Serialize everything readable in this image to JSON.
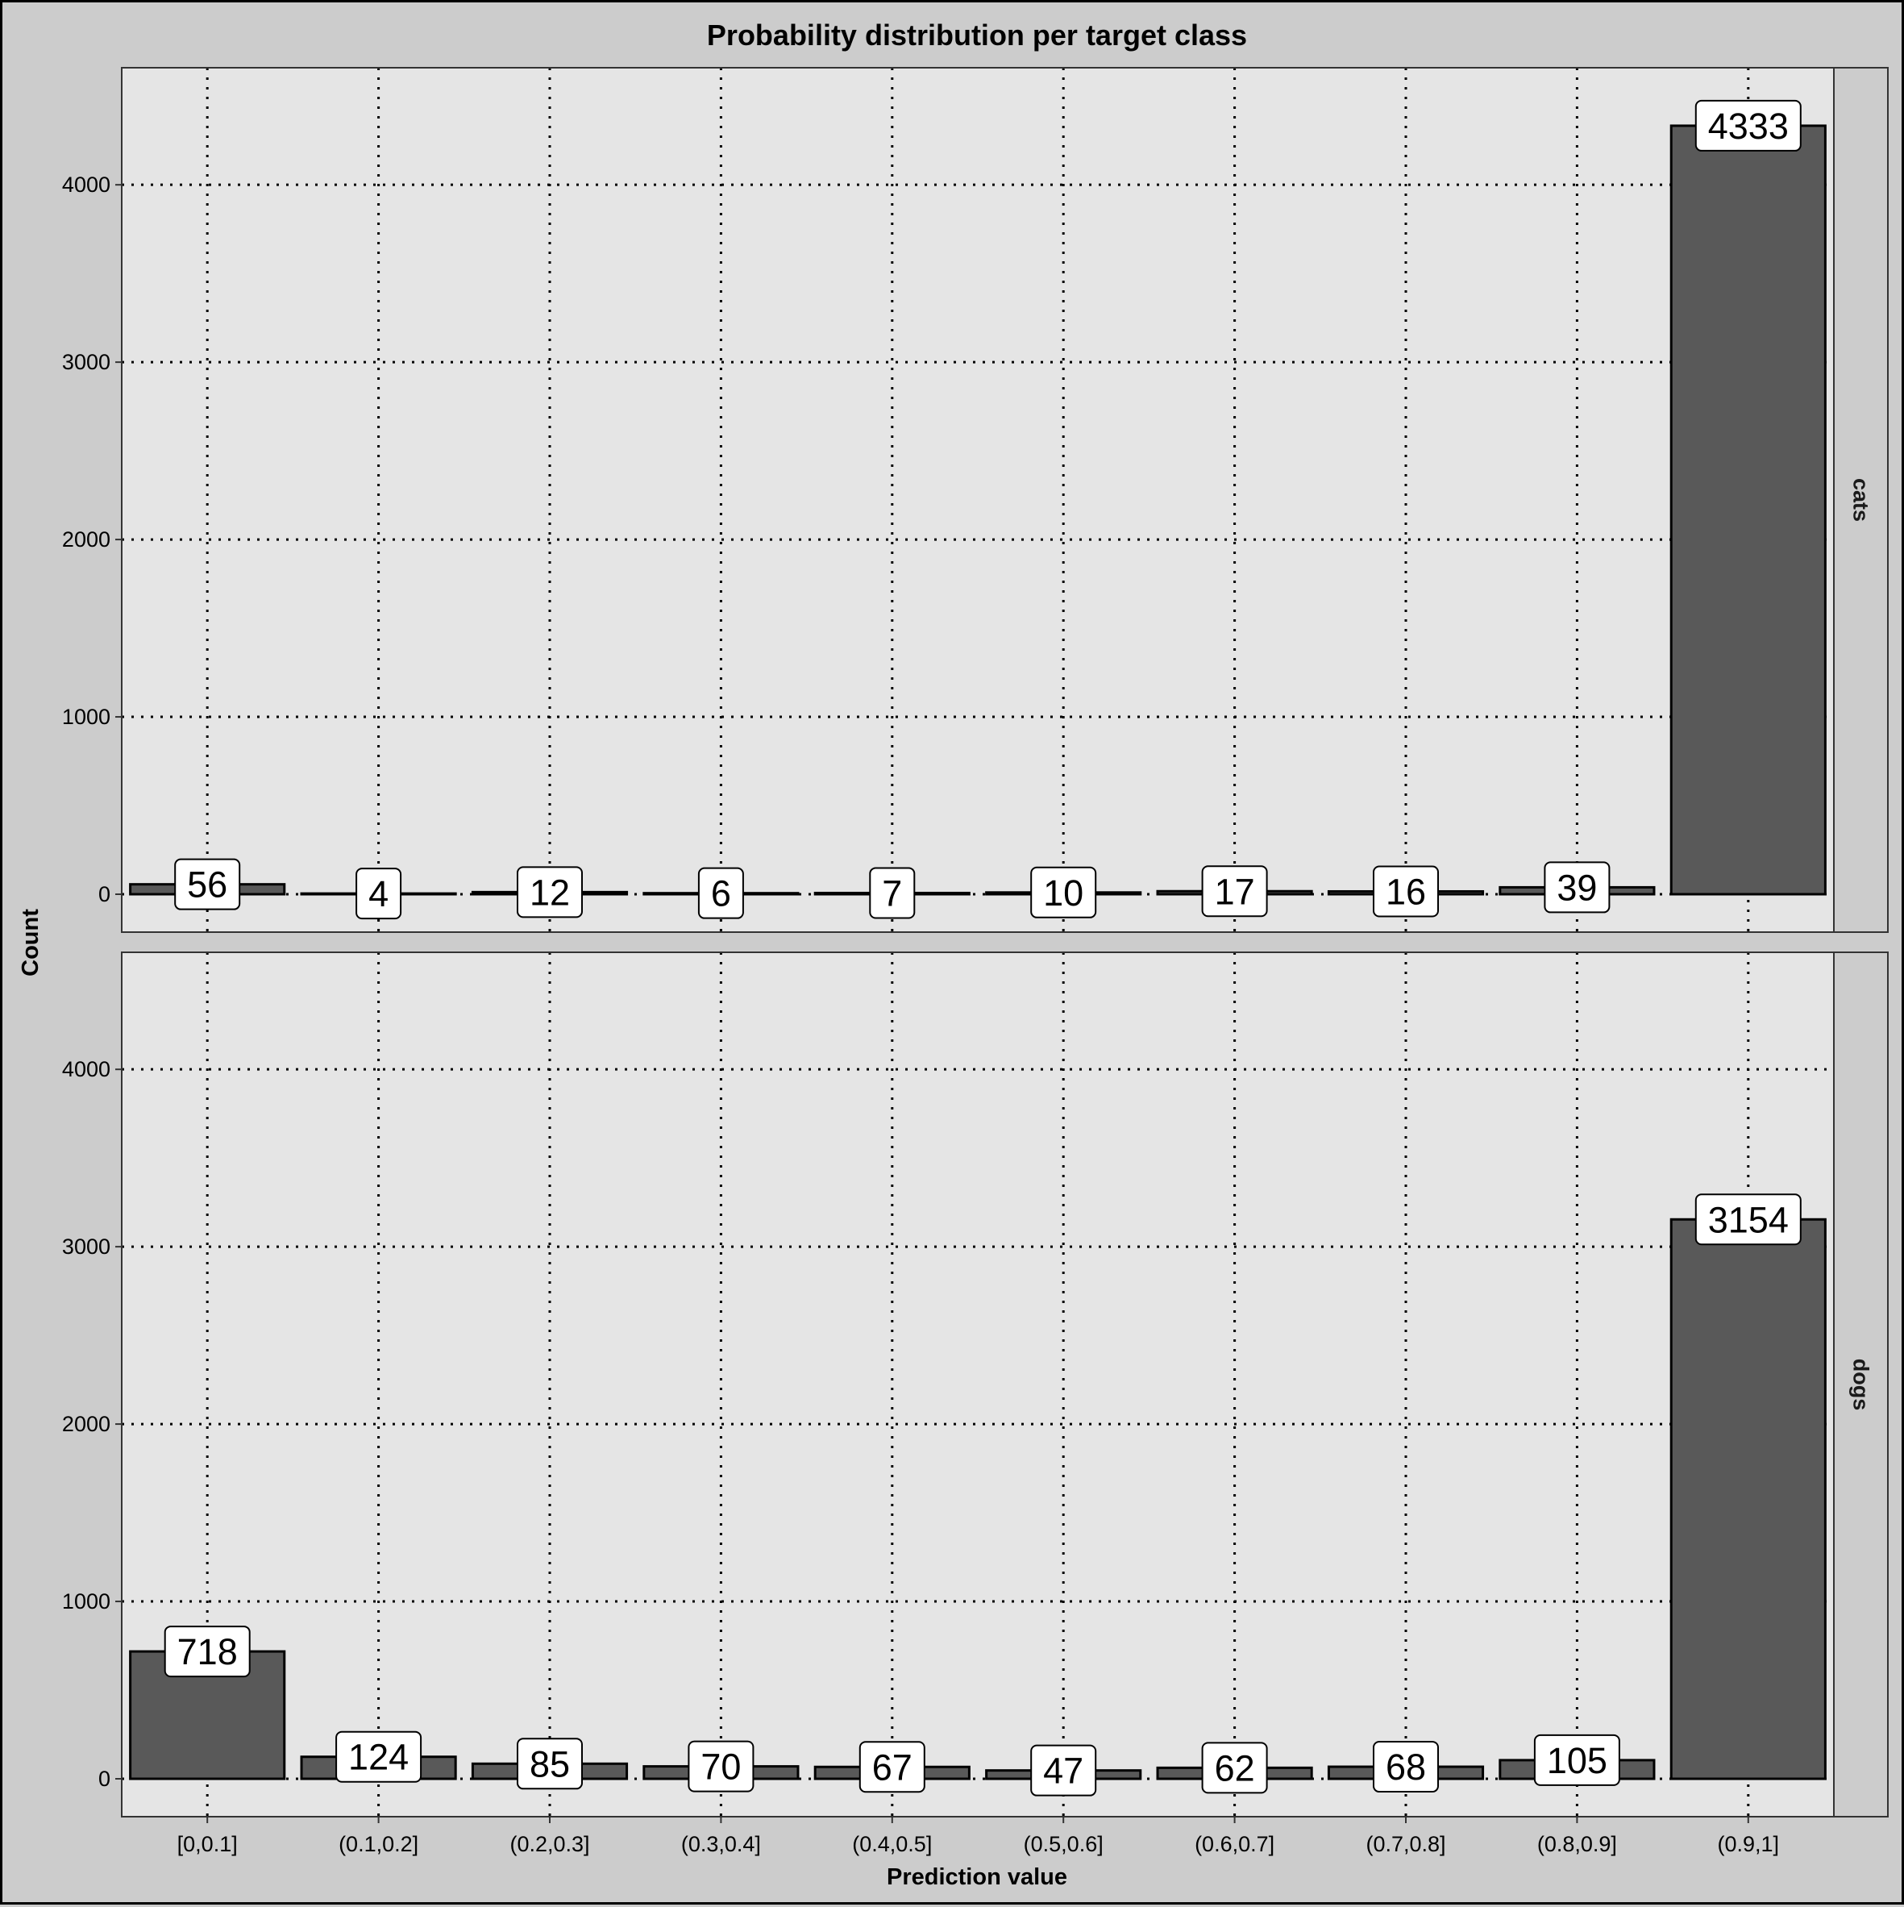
{
  "chart_data": {
    "type": "bar",
    "title": "Probability distribution per target class",
    "xlabel": "Prediction value",
    "ylabel": "Count",
    "categories": [
      "[0,0.1]",
      "(0.1,0.2]",
      "(0.2,0.3]",
      "(0.3,0.4]",
      "(0.4,0.5]",
      "(0.5,0.6]",
      "(0.6,0.7]",
      "(0.7,0.8]",
      "(0.8,0.9]",
      "(0.9,1]"
    ],
    "ylim": [
      0,
      4560
    ],
    "yticks": [
      0,
      1000,
      2000,
      3000,
      4000
    ],
    "grid": true,
    "grid_style": "dotted",
    "panels": [
      {
        "name": "cats",
        "values": [
          56,
          4,
          12,
          6,
          7,
          10,
          17,
          16,
          39,
          4333
        ]
      },
      {
        "name": "dogs",
        "values": [
          718,
          124,
          85,
          70,
          67,
          47,
          62,
          68,
          105,
          3154
        ]
      }
    ],
    "colors": {
      "bar_fill": "#595959",
      "bar_outline": "#000000",
      "panel_background": "#e5e5e5",
      "plot_background": "#cccccc",
      "strip_background": "#cccccc",
      "label_fill": "#ffffff"
    }
  }
}
